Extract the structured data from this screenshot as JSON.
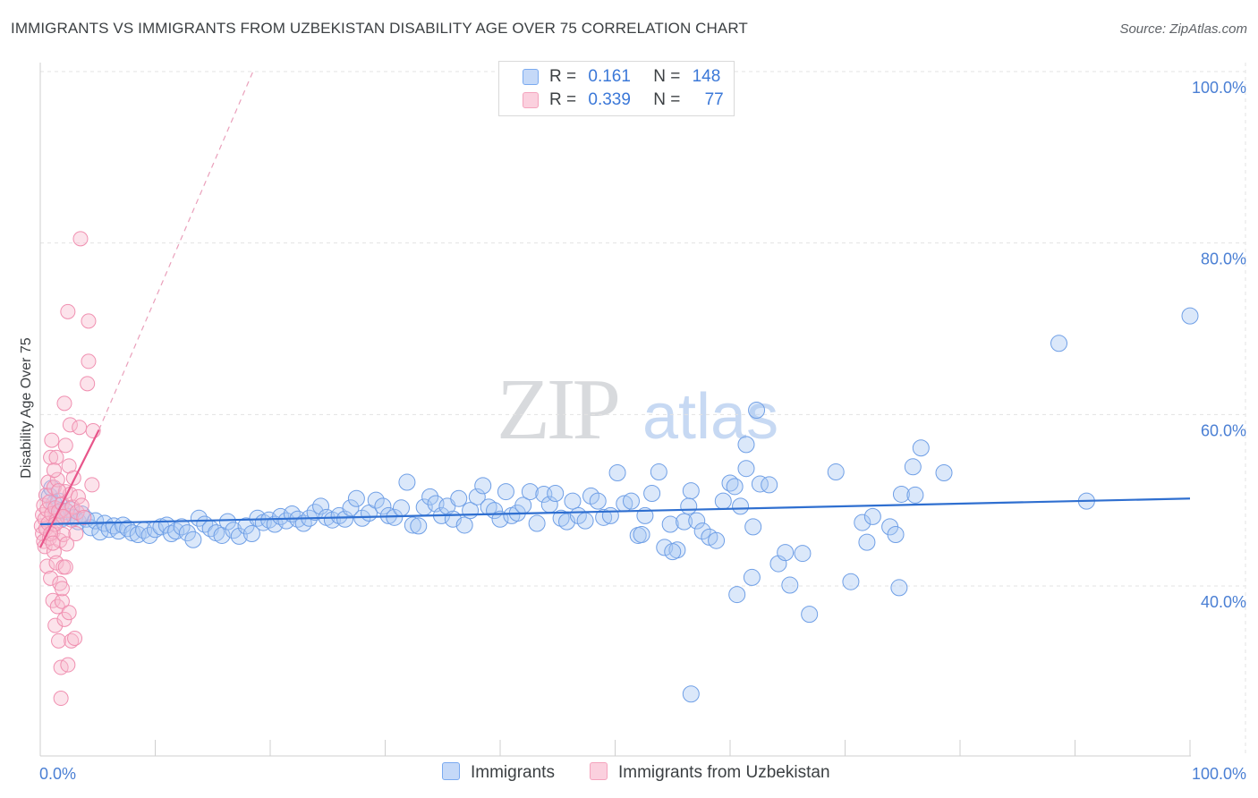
{
  "title": "IMMIGRANTS VS IMMIGRANTS FROM UZBEKISTAN DISABILITY AGE OVER 75 CORRELATION CHART",
  "source": "Source: ZipAtlas.com",
  "watermark": {
    "zip": "ZIP",
    "atlas": "atlas"
  },
  "legend": {
    "rows": [
      {
        "r_label": "R =",
        "r_value": "0.161",
        "n_label": "N =",
        "n_value": "148"
      },
      {
        "r_label": "R =",
        "r_value": "0.339",
        "n_label": "N =",
        "n_value": "77"
      }
    ]
  },
  "chart_data": {
    "type": "scatter",
    "ylabel": "Disability Age Over 75",
    "xlabel": "",
    "xlim": [
      0,
      100
    ],
    "ylim": [
      20,
      100
    ],
    "x_tick_labels": [
      "0.0%",
      "100.0%"
    ],
    "y_ticks": [
      40,
      60,
      80,
      100
    ],
    "y_tick_labels": [
      "40.0%",
      "60.0%",
      "80.0%",
      "100.0%"
    ],
    "grid": true,
    "colors": {
      "immigrants": "#7aaaf0",
      "uzbekistan": "#f4a3bd",
      "immigrants_line": "#2f6fd0",
      "uzbekistan_line": "#e8558a"
    },
    "series": [
      {
        "name": "Immigrants",
        "trend": {
          "x": [
            0,
            100
          ],
          "y": [
            47.2,
            50.2
          ]
        },
        "points": [
          [
            0.8,
            50.5
          ],
          [
            1.0,
            51.4
          ],
          [
            1.2,
            49.6
          ],
          [
            1.4,
            48.5
          ],
          [
            1.6,
            49.9
          ],
          [
            1.8,
            48.8
          ],
          [
            2.0,
            47.9
          ],
          [
            2.2,
            48.7
          ],
          [
            2.4,
            48.1
          ],
          [
            2.7,
            48.9
          ],
          [
            3.0,
            48.0
          ],
          [
            3.3,
            47.5
          ],
          [
            3.6,
            48.4
          ],
          [
            4.0,
            47.8
          ],
          [
            4.4,
            46.8
          ],
          [
            4.8,
            47.6
          ],
          [
            5.2,
            46.3
          ],
          [
            5.6,
            47.3
          ],
          [
            6.0,
            46.6
          ],
          [
            6.4,
            47.0
          ],
          [
            6.8,
            46.4
          ],
          [
            7.2,
            47.1
          ],
          [
            7.6,
            46.7
          ],
          [
            8.0,
            46.2
          ],
          [
            8.5,
            46.0
          ],
          [
            9.0,
            46.5
          ],
          [
            9.5,
            45.9
          ],
          [
            10.0,
            46.6
          ],
          [
            10.5,
            46.9
          ],
          [
            11.0,
            47.1
          ],
          [
            11.4,
            46.1
          ],
          [
            11.8,
            46.4
          ],
          [
            12.3,
            46.9
          ],
          [
            12.8,
            46.2
          ],
          [
            13.3,
            45.4
          ],
          [
            13.8,
            47.9
          ],
          [
            14.3,
            47.2
          ],
          [
            14.8,
            46.7
          ],
          [
            15.3,
            46.2
          ],
          [
            15.8,
            45.9
          ],
          [
            16.3,
            47.5
          ],
          [
            16.8,
            46.5
          ],
          [
            17.3,
            45.8
          ],
          [
            17.9,
            47.0
          ],
          [
            18.4,
            46.1
          ],
          [
            18.9,
            47.9
          ],
          [
            19.4,
            47.4
          ],
          [
            19.9,
            47.7
          ],
          [
            20.4,
            47.2
          ],
          [
            20.9,
            48.1
          ],
          [
            21.4,
            47.6
          ],
          [
            21.9,
            48.4
          ],
          [
            22.4,
            47.8
          ],
          [
            22.9,
            47.3
          ],
          [
            23.4,
            47.9
          ],
          [
            23.9,
            48.6
          ],
          [
            24.4,
            49.3
          ],
          [
            24.9,
            48.0
          ],
          [
            25.4,
            47.7
          ],
          [
            26.0,
            48.2
          ],
          [
            26.5,
            47.8
          ],
          [
            27.0,
            49.1
          ],
          [
            27.5,
            50.2
          ],
          [
            28.0,
            47.9
          ],
          [
            28.6,
            48.5
          ],
          [
            29.2,
            50.0
          ],
          [
            29.8,
            49.3
          ],
          [
            30.3,
            48.2
          ],
          [
            30.8,
            48.0
          ],
          [
            31.4,
            49.1
          ],
          [
            31.9,
            52.1
          ],
          [
            32.4,
            47.1
          ],
          [
            32.9,
            47.0
          ],
          [
            33.4,
            49.2
          ],
          [
            33.9,
            50.4
          ],
          [
            34.4,
            49.6
          ],
          [
            34.9,
            48.2
          ],
          [
            35.4,
            49.3
          ],
          [
            35.9,
            47.8
          ],
          [
            36.4,
            50.2
          ],
          [
            36.9,
            47.1
          ],
          [
            37.4,
            48.8
          ],
          [
            38.0,
            50.4
          ],
          [
            38.5,
            51.7
          ],
          [
            39.0,
            49.2
          ],
          [
            39.5,
            48.8
          ],
          [
            40.0,
            47.8
          ],
          [
            40.5,
            51.0
          ],
          [
            41.0,
            48.2
          ],
          [
            41.5,
            48.5
          ],
          [
            42.0,
            49.4
          ],
          [
            42.6,
            51.0
          ],
          [
            43.2,
            47.3
          ],
          [
            43.8,
            50.7
          ],
          [
            44.3,
            49.5
          ],
          [
            44.8,
            50.8
          ],
          [
            45.3,
            47.9
          ],
          [
            45.8,
            47.5
          ],
          [
            46.3,
            49.9
          ],
          [
            46.8,
            48.2
          ],
          [
            47.4,
            47.6
          ],
          [
            47.9,
            50.5
          ],
          [
            48.5,
            49.9
          ],
          [
            49.0,
            48.0
          ],
          [
            49.6,
            48.2
          ],
          [
            50.2,
            53.2
          ],
          [
            50.8,
            49.6
          ],
          [
            51.4,
            49.9
          ],
          [
            52.0,
            45.9
          ],
          [
            52.6,
            48.2
          ],
          [
            53.2,
            50.8
          ],
          [
            53.8,
            53.3
          ],
          [
            54.3,
            44.5
          ],
          [
            54.8,
            47.2
          ],
          [
            55.4,
            44.2
          ],
          [
            56.0,
            47.5
          ],
          [
            56.6,
            51.1
          ],
          [
            57.1,
            47.6
          ],
          [
            57.6,
            46.4
          ],
          [
            58.2,
            45.7
          ],
          [
            58.8,
            45.3
          ],
          [
            59.4,
            49.9
          ],
          [
            60.0,
            52.0
          ],
          [
            60.4,
            51.6
          ],
          [
            60.9,
            49.3
          ],
          [
            61.4,
            53.7
          ],
          [
            62.0,
            46.9
          ],
          [
            62.3,
            60.5
          ],
          [
            62.6,
            51.9
          ],
          [
            63.4,
            51.8
          ],
          [
            64.2,
            42.6
          ],
          [
            64.8,
            43.9
          ],
          [
            65.2,
            40.1
          ],
          [
            66.3,
            43.8
          ],
          [
            66.9,
            36.7
          ],
          [
            61.4,
            56.5
          ],
          [
            60.6,
            39.0
          ],
          [
            61.9,
            41.0
          ],
          [
            69.2,
            53.3
          ],
          [
            70.5,
            40.5
          ],
          [
            71.5,
            47.4
          ],
          [
            71.9,
            45.1
          ],
          [
            72.4,
            48.1
          ],
          [
            73.9,
            46.9
          ],
          [
            74.4,
            46.0
          ],
          [
            74.7,
            39.8
          ],
          [
            74.9,
            50.7
          ],
          [
            75.9,
            53.9
          ],
          [
            76.1,
            50.6
          ],
          [
            76.6,
            56.1
          ],
          [
            78.6,
            53.2
          ],
          [
            88.6,
            68.3
          ],
          [
            91.0,
            49.9
          ],
          [
            100.0,
            71.5
          ],
          [
            52.3,
            46.0
          ],
          [
            55.0,
            44.0
          ],
          [
            56.4,
            49.3
          ],
          [
            56.6,
            27.4
          ]
        ]
      },
      {
        "name": "Immigrants from Uzbekistan",
        "trend": {
          "x": [
            0,
            5.1
          ],
          "y": [
            44.5,
            58.2
          ]
        },
        "trend_extension": {
          "x": [
            5.1,
            18.5
          ],
          "y": [
            58.2,
            100
          ]
        },
        "points": [
          [
            0.1,
            47.0
          ],
          [
            0.2,
            48.3
          ],
          [
            0.2,
            46.1
          ],
          [
            0.3,
            45.2
          ],
          [
            0.3,
            49.4
          ],
          [
            0.4,
            47.8
          ],
          [
            0.4,
            44.6
          ],
          [
            0.5,
            50.6
          ],
          [
            0.5,
            46.7
          ],
          [
            0.6,
            48.9
          ],
          [
            0.6,
            42.3
          ],
          [
            0.7,
            52.1
          ],
          [
            0.7,
            47.3
          ],
          [
            0.8,
            45.6
          ],
          [
            0.8,
            49.8
          ],
          [
            0.9,
            55.0
          ],
          [
            0.9,
            40.9
          ],
          [
            1.0,
            57.0
          ],
          [
            1.0,
            48.4
          ],
          [
            1.1,
            46.3
          ],
          [
            1.1,
            38.3
          ],
          [
            1.2,
            51.5
          ],
          [
            1.2,
            44.0
          ],
          [
            1.3,
            35.4
          ],
          [
            1.3,
            49.1
          ],
          [
            1.4,
            47.6
          ],
          [
            1.4,
            42.7
          ],
          [
            1.5,
            52.4
          ],
          [
            1.5,
            37.6
          ],
          [
            1.6,
            33.6
          ],
          [
            1.6,
            48.7
          ],
          [
            1.7,
            45.3
          ],
          [
            1.7,
            40.3
          ],
          [
            1.8,
            26.9
          ],
          [
            1.8,
            30.5
          ],
          [
            1.9,
            38.2
          ],
          [
            1.9,
            49.6
          ],
          [
            2.0,
            42.2
          ],
          [
            2.0,
            46.0
          ],
          [
            2.1,
            61.3
          ],
          [
            2.1,
            36.1
          ],
          [
            2.2,
            51.0
          ],
          [
            2.2,
            56.4
          ],
          [
            2.3,
            48.8
          ],
          [
            2.3,
            44.9
          ],
          [
            2.4,
            30.8
          ],
          [
            2.4,
            72.0
          ],
          [
            2.5,
            54.0
          ],
          [
            2.5,
            36.9
          ],
          [
            2.6,
            50.7
          ],
          [
            2.6,
            58.8
          ],
          [
            2.7,
            33.6
          ],
          [
            2.7,
            47.7
          ],
          [
            2.8,
            49.2
          ],
          [
            2.9,
            52.6
          ],
          [
            3.0,
            33.9
          ],
          [
            3.1,
            46.1
          ],
          [
            3.2,
            48.6
          ],
          [
            3.3,
            50.4
          ],
          [
            3.4,
            58.5
          ],
          [
            3.5,
            80.5
          ],
          [
            3.6,
            49.4
          ],
          [
            3.8,
            48.0
          ],
          [
            4.1,
            63.6
          ],
          [
            4.2,
            70.9
          ],
          [
            4.2,
            66.2
          ],
          [
            4.5,
            51.8
          ],
          [
            4.6,
            58.1
          ],
          [
            1.3,
            47.2
          ],
          [
            0.9,
            46.1
          ],
          [
            1.6,
            51.1
          ],
          [
            2.0,
            48.1
          ],
          [
            1.1,
            45.0
          ],
          [
            1.4,
            55.0
          ],
          [
            2.2,
            42.2
          ],
          [
            1.9,
            39.7
          ],
          [
            1.2,
            53.5
          ]
        ]
      }
    ]
  }
}
